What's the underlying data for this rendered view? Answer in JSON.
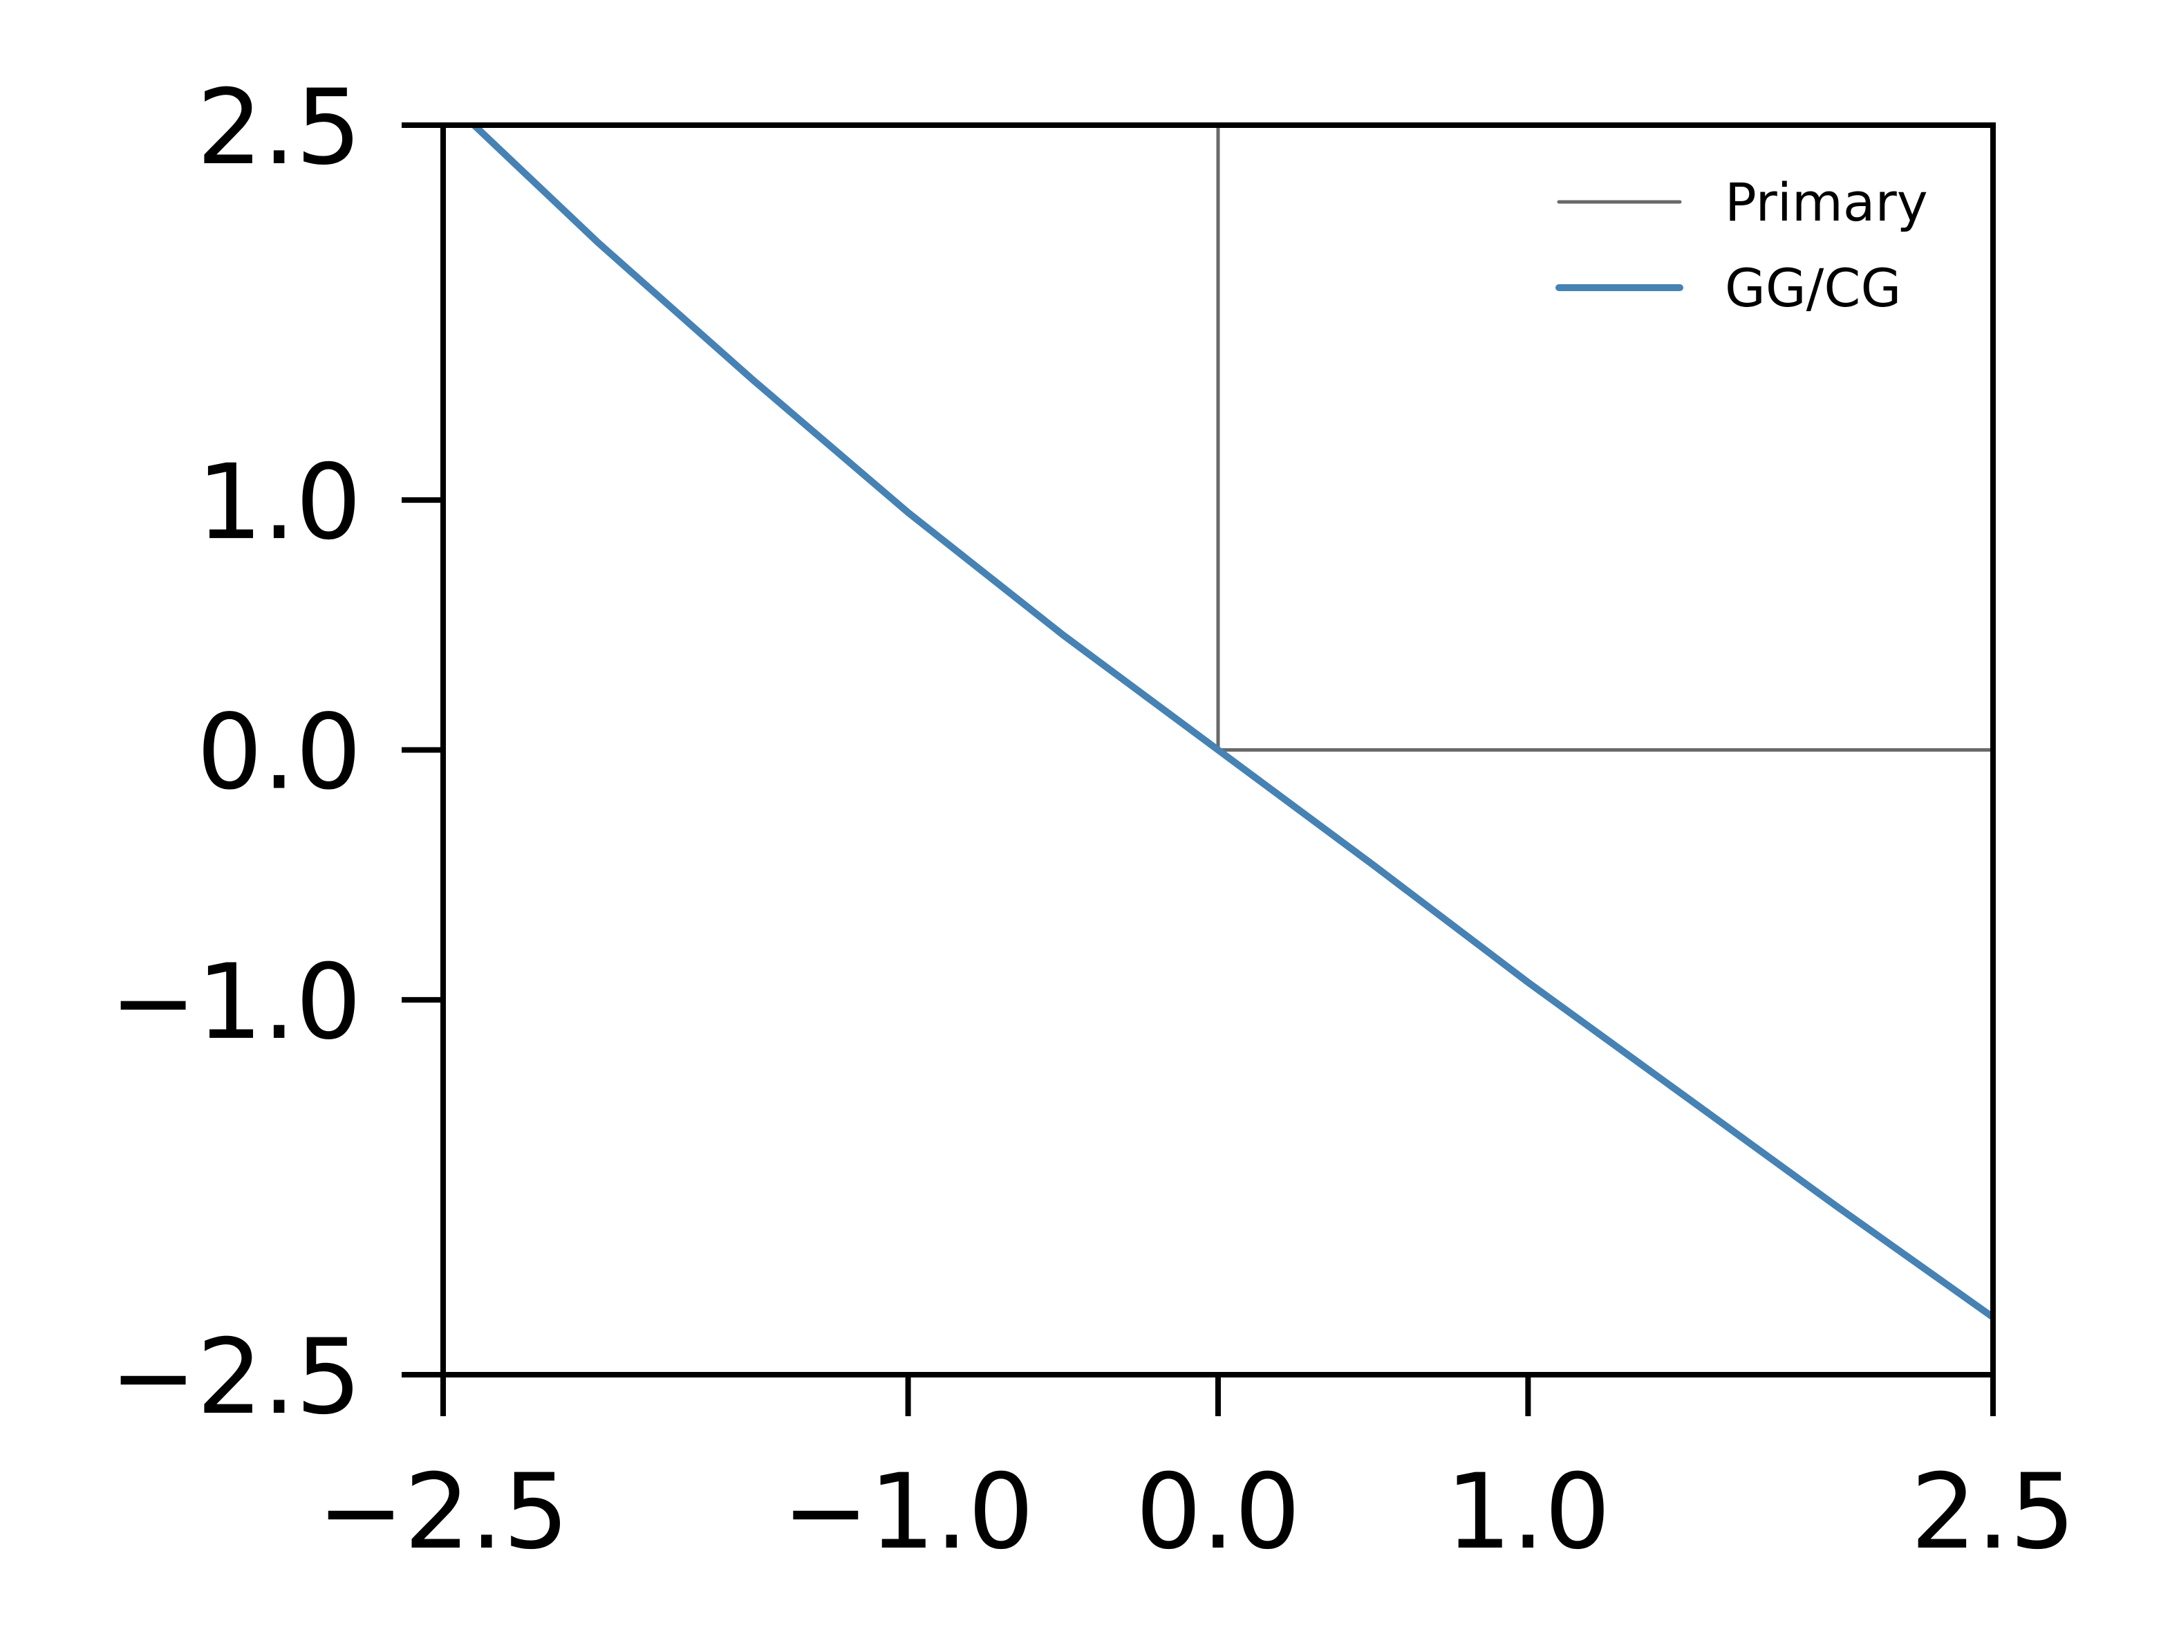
{
  "chart_data": {
    "type": "line",
    "title": "",
    "xlabel": "",
    "ylabel": "",
    "xlim": [
      -2.5,
      2.5
    ],
    "ylim": [
      -2.5,
      2.5
    ],
    "xticks": [
      -2.5,
      -1.0,
      0.0,
      1.0,
      2.5
    ],
    "yticks": [
      -2.5,
      -1.0,
      0.0,
      1.0,
      2.5
    ],
    "xtick_labels": [
      "−2.5",
      "−1.0",
      "0.0",
      "1.0",
      "2.5"
    ],
    "ytick_labels": [
      "−2.5",
      "−1.0",
      "0.0",
      "1.0",
      "2.5"
    ],
    "grid": false,
    "legend_position": "top-right",
    "series": [
      {
        "name": "Primary",
        "color": "#696969",
        "x": [
          0.0,
          0.0,
          2.5
        ],
        "y": [
          2.5,
          0.0,
          0.0
        ]
      },
      {
        "name": "GG/CG",
        "color": "#4682b4",
        "x": [
          -2.4,
          -2.0,
          -1.5,
          -1.0,
          -0.5,
          0.0,
          0.5,
          1.0,
          1.5,
          2.0,
          2.5
        ],
        "y": [
          2.5,
          2.03,
          1.48,
          0.95,
          0.46,
          0.0,
          -0.46,
          -0.93,
          -1.38,
          -1.83,
          -2.27
        ]
      }
    ]
  }
}
